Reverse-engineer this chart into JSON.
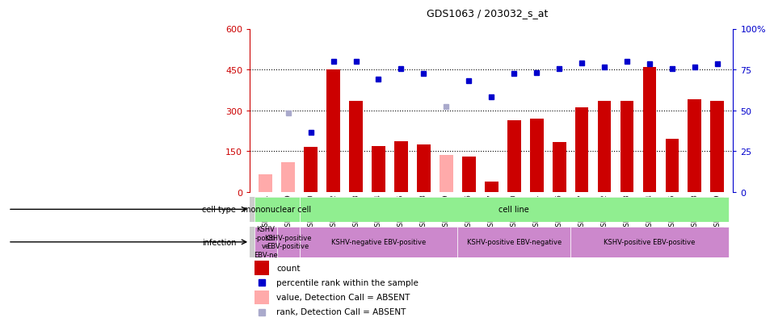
{
  "title": "GDS1063 / 203032_s_at",
  "samples": [
    "GSM38791",
    "GSM38789",
    "GSM38790",
    "GSM38802",
    "GSM38803",
    "GSM38804",
    "GSM38805",
    "GSM38808",
    "GSM38809",
    "GSM38796",
    "GSM38797",
    "GSM38800",
    "GSM38801",
    "GSM38806",
    "GSM38807",
    "GSM38792",
    "GSM38793",
    "GSM38794",
    "GSM38795",
    "GSM38798",
    "GSM38799"
  ],
  "count_values": [
    65,
    110,
    165,
    450,
    335,
    168,
    188,
    175,
    138,
    130,
    40,
    265,
    270,
    185,
    310,
    335,
    335,
    460,
    195,
    340,
    335
  ],
  "count_absent": [
    true,
    true,
    false,
    false,
    false,
    false,
    false,
    false,
    true,
    false,
    false,
    false,
    false,
    false,
    false,
    false,
    false,
    false,
    false,
    false,
    false
  ],
  "percentile_values": [
    null,
    290,
    220,
    480,
    480,
    415,
    455,
    435,
    315,
    410,
    350,
    435,
    440,
    455,
    475,
    460,
    480,
    470,
    455,
    460,
    470
  ],
  "percentile_absent": [
    null,
    true,
    false,
    false,
    false,
    false,
    false,
    false,
    true,
    false,
    false,
    false,
    false,
    false,
    false,
    false,
    false,
    false,
    false,
    false,
    false
  ],
  "ylim_left": [
    0,
    600
  ],
  "yticks_left": [
    0,
    150,
    300,
    450,
    600
  ],
  "bar_color_present": "#cc0000",
  "bar_color_absent": "#ffaaaa",
  "dot_color_present": "#0000cc",
  "dot_color_absent": "#aaaacc",
  "cell_type_groups": [
    {
      "label": "mononuclear cell",
      "start": 0,
      "end": 2,
      "color": "#90ee90"
    },
    {
      "label": "cell line",
      "start": 2,
      "end": 21,
      "color": "#90ee90"
    }
  ],
  "infection_groups": [
    {
      "label": "KSHV\n-positi\nve\nEBV-ne",
      "start": 0,
      "end": 1,
      "color": "#cc88cc"
    },
    {
      "label": "KSHV-positive\nEBV-positive",
      "start": 1,
      "end": 2,
      "color": "#cc88cc"
    },
    {
      "label": "KSHV-negative EBV-positive",
      "start": 2,
      "end": 9,
      "color": "#cc88cc"
    },
    {
      "label": "KSHV-positive EBV-negative",
      "start": 9,
      "end": 14,
      "color": "#cc88cc"
    },
    {
      "label": "KSHV-positive EBV-positive",
      "start": 14,
      "end": 21,
      "color": "#cc88cc"
    }
  ],
  "background_color": "#ffffff"
}
